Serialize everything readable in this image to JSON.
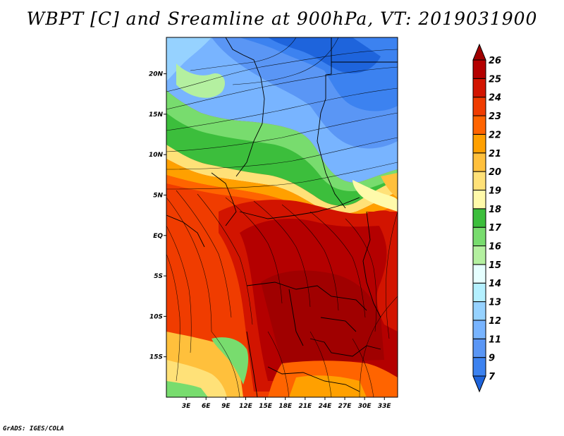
{
  "title": "WBPT [C] and Sreamline at 900hPa, VT: 2019031900",
  "credit": "GrADS: IGES/COLA",
  "map": {
    "lat_labels": [
      "20N",
      "15N",
      "10N",
      "5N",
      "EQ",
      "5S",
      "10S",
      "15S"
    ],
    "lon_labels": [
      "3E",
      "6E",
      "9E",
      "12E",
      "15E",
      "18E",
      "21E",
      "24E",
      "27E",
      "30E",
      "33E"
    ],
    "lat_range": [
      -20,
      24.5
    ],
    "lon_range": [
      0,
      35
    ]
  },
  "colorbar": {
    "levels": [
      "7",
      "9",
      "11",
      "12",
      "13",
      "14",
      "15",
      "16",
      "17",
      "18",
      "19",
      "20",
      "21",
      "22",
      "23",
      "24",
      "25",
      "26"
    ],
    "colors": [
      "#1e64dc",
      "#3c82f0",
      "#5a96f5",
      "#78b4ff",
      "#96d2ff",
      "#b4f0ff",
      "#e6ffff",
      "#b4f0a0",
      "#78dc6e",
      "#3cbe3c",
      "#fffaaa",
      "#ffe178",
      "#ffc03c",
      "#ffa000",
      "#ff6400",
      "#f03c00",
      "#d21400",
      "#b40000",
      "#a00000"
    ]
  }
}
